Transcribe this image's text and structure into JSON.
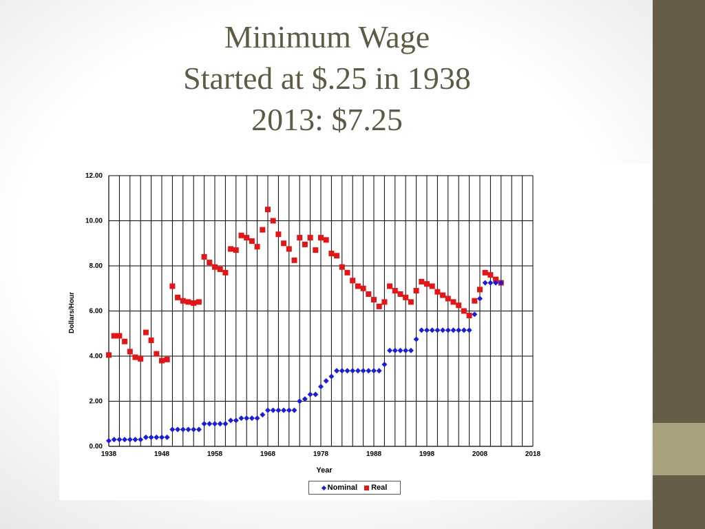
{
  "slide": {
    "title_lines": [
      "Minimum Wage",
      "Started at $.25 in 1938",
      "2013: $7.25"
    ]
  },
  "colors": {
    "nominal": "#1a1ae6",
    "real": "#e61414",
    "sidebar": "#655d48",
    "sidebar_accent": "#a9a27d",
    "title_text": "#5e5a44"
  },
  "chart_data": {
    "type": "scatter",
    "title": "",
    "xlabel": "Year",
    "ylabel": "Dollars/Hour",
    "xlim": [
      1938,
      2018
    ],
    "ylim": [
      0,
      12
    ],
    "x_ticks": [
      1938,
      1948,
      1958,
      1968,
      1978,
      1988,
      1998,
      2008,
      2018
    ],
    "y_ticks": [
      "0.00",
      "2.00",
      "4.00",
      "6.00",
      "8.00",
      "10.00",
      "12.00"
    ],
    "grid": true,
    "legend": "bottom-center",
    "series": [
      {
        "name": "Nominal",
        "marker": "diamond",
        "x": [
          1938,
          1939,
          1940,
          1941,
          1942,
          1943,
          1944,
          1945,
          1946,
          1947,
          1948,
          1949,
          1950,
          1951,
          1952,
          1953,
          1954,
          1955,
          1956,
          1957,
          1958,
          1959,
          1960,
          1961,
          1962,
          1963,
          1964,
          1965,
          1966,
          1967,
          1968,
          1969,
          1970,
          1971,
          1972,
          1973,
          1974,
          1975,
          1976,
          1977,
          1978,
          1979,
          1980,
          1981,
          1982,
          1983,
          1984,
          1985,
          1986,
          1987,
          1988,
          1989,
          1990,
          1991,
          1992,
          1993,
          1994,
          1995,
          1996,
          1997,
          1998,
          1999,
          2000,
          2001,
          2002,
          2003,
          2004,
          2005,
          2006,
          2007,
          2008,
          2009,
          2010,
          2011,
          2012
        ],
        "y": [
          0.25,
          0.3,
          0.3,
          0.3,
          0.3,
          0.3,
          0.3,
          0.4,
          0.4,
          0.4,
          0.4,
          0.4,
          0.75,
          0.75,
          0.75,
          0.75,
          0.75,
          0.75,
          1.0,
          1.0,
          1.0,
          1.0,
          1.0,
          1.15,
          1.15,
          1.25,
          1.25,
          1.25,
          1.25,
          1.4,
          1.6,
          1.6,
          1.6,
          1.6,
          1.6,
          1.6,
          2.0,
          2.1,
          2.3,
          2.3,
          2.65,
          2.9,
          3.1,
          3.35,
          3.35,
          3.35,
          3.35,
          3.35,
          3.35,
          3.35,
          3.35,
          3.35,
          3.63,
          4.25,
          4.25,
          4.25,
          4.25,
          4.25,
          4.75,
          5.15,
          5.15,
          5.15,
          5.15,
          5.15,
          5.15,
          5.15,
          5.15,
          5.15,
          5.15,
          5.85,
          6.55,
          7.25,
          7.25,
          7.25,
          7.25
        ]
      },
      {
        "name": "Real",
        "marker": "square",
        "x": [
          1938,
          1939,
          1940,
          1941,
          1942,
          1943,
          1944,
          1945,
          1946,
          1947,
          1948,
          1949,
          1950,
          1951,
          1952,
          1953,
          1954,
          1955,
          1956,
          1957,
          1958,
          1959,
          1960,
          1961,
          1962,
          1963,
          1964,
          1965,
          1966,
          1967,
          1968,
          1969,
          1970,
          1971,
          1972,
          1973,
          1974,
          1975,
          1976,
          1977,
          1978,
          1979,
          1980,
          1981,
          1982,
          1983,
          1984,
          1985,
          1986,
          1987,
          1988,
          1989,
          1990,
          1991,
          1992,
          1993,
          1994,
          1995,
          1996,
          1997,
          1998,
          1999,
          2000,
          2001,
          2002,
          2003,
          2004,
          2005,
          2006,
          2007,
          2008,
          2009,
          2010,
          2011,
          2012
        ],
        "y": [
          4.05,
          4.9,
          4.9,
          4.65,
          4.2,
          3.95,
          3.88,
          5.05,
          4.7,
          4.1,
          3.8,
          3.85,
          7.1,
          6.6,
          6.45,
          6.4,
          6.35,
          6.4,
          8.4,
          8.15,
          7.95,
          7.85,
          7.7,
          8.75,
          8.7,
          9.35,
          9.25,
          9.1,
          8.85,
          9.6,
          10.5,
          10.0,
          9.4,
          9.0,
          8.75,
          8.25,
          9.25,
          8.95,
          9.25,
          8.7,
          9.25,
          9.15,
          8.55,
          8.45,
          7.95,
          7.7,
          7.35,
          7.1,
          7.0,
          6.75,
          6.5,
          6.2,
          6.4,
          7.1,
          6.9,
          6.75,
          6.6,
          6.4,
          6.9,
          7.3,
          7.2,
          7.1,
          6.85,
          6.7,
          6.55,
          6.4,
          6.25,
          6.0,
          5.8,
          6.45,
          6.95,
          7.7,
          7.6,
          7.4,
          7.25
        ]
      }
    ]
  }
}
